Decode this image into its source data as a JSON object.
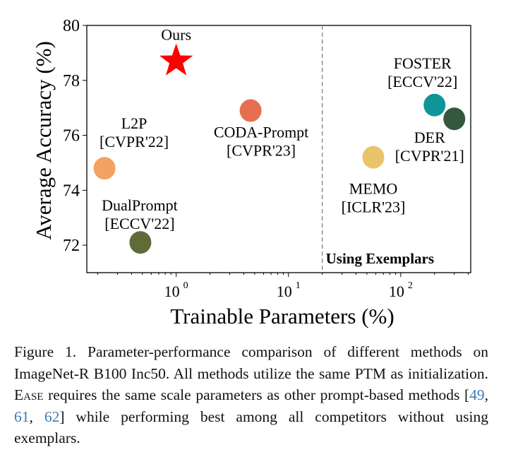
{
  "chart_data": {
    "type": "scatter",
    "xlabel": "Trainable Parameters (%)",
    "ylabel": "Average Accuracy (%)",
    "xscale": "log",
    "xlim": [
      0.16,
      420
    ],
    "ylim": [
      71,
      80
    ],
    "xticks": [
      {
        "value": 1,
        "label": "10",
        "exp": "0"
      },
      {
        "value": 10,
        "label": "10",
        "exp": "1"
      },
      {
        "value": 100,
        "label": "10",
        "exp": "2"
      }
    ],
    "yticks": [
      72,
      74,
      76,
      78,
      80
    ],
    "grid": false,
    "divider": {
      "x": 20,
      "style": "dashed",
      "label": "Using Exemplars"
    },
    "points": [
      {
        "name": "Ours",
        "venue": "",
        "x": 1.0,
        "y": 78.7,
        "color": "#ff0000",
        "marker": "star"
      },
      {
        "name": "L2P",
        "venue": "[CVPR'22]",
        "x": 0.23,
        "y": 74.8,
        "color": "#f4a261",
        "marker": "circle"
      },
      {
        "name": "DualPrompt",
        "venue": "[ECCV'22]",
        "x": 0.48,
        "y": 72.1,
        "color": "#606c38",
        "marker": "circle"
      },
      {
        "name": "CODA-Prompt",
        "venue": "[CVPR'23]",
        "x": 4.6,
        "y": 76.9,
        "color": "#e76f51",
        "marker": "circle"
      },
      {
        "name": "MEMO",
        "venue": "[ICLR'23]",
        "x": 57,
        "y": 75.2,
        "color": "#e9c46a",
        "marker": "circle"
      },
      {
        "name": "FOSTER",
        "venue": "[ECCV'22]",
        "x": 200,
        "y": 77.1,
        "color": "#0f9596",
        "marker": "circle"
      },
      {
        "name": "DER",
        "venue": "[CVPR'21]",
        "x": 300,
        "y": 76.6,
        "color": "#34573e",
        "marker": "circle"
      }
    ]
  },
  "caption": {
    "prefix": "Figure 1. Parameter-performance comparison of different methods on ImageNet-R B100 Inc50. All methods utilize the same PTM as initialization. ",
    "method": "Ease",
    "middle": " requires the same scale parameters as other prompt-based methods [",
    "cites": [
      "49",
      "61",
      "62"
    ],
    "suffix": "] while performing best among all competitors without using exemplars."
  }
}
